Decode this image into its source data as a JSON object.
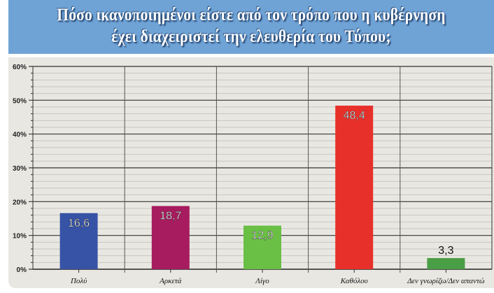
{
  "header": {
    "title_line1": "Πόσο ικανοποιημένοι είστε από τον τρόπο που η κυβέρνηση",
    "title_line2": "έχει διαχειριστεί την ελευθερία του Τύπου;",
    "background": "#6fa3d6"
  },
  "chart_data": {
    "type": "bar",
    "title": "Πόσο ικανοποιημένοι είστε από τον τρόπο που η κυβέρνηση έχει διαχειριστεί την ελευθερία του Τύπου;",
    "categories": [
      "Πολύ",
      "Αρκετά",
      "Λίγο",
      "Καθόλου",
      "Δεν γνωρίζω/Δεν απαντώ"
    ],
    "values": [
      16.6,
      18.7,
      12.9,
      48.4,
      3.3
    ],
    "value_labels": [
      "16,6",
      "18,7",
      "12,9",
      "48,4",
      "3,3"
    ],
    "colors": [
      "#3653a6",
      "#a61c5e",
      "#6abf45",
      "#e8302a",
      "#4a9e45"
    ],
    "yticks": [
      "0%",
      "10%",
      "20%",
      "30%",
      "40%",
      "50%",
      "60%"
    ],
    "ylim": [
      0,
      60
    ],
    "xlabel": "",
    "ylabel": "",
    "grid": true,
    "legend": "none"
  }
}
